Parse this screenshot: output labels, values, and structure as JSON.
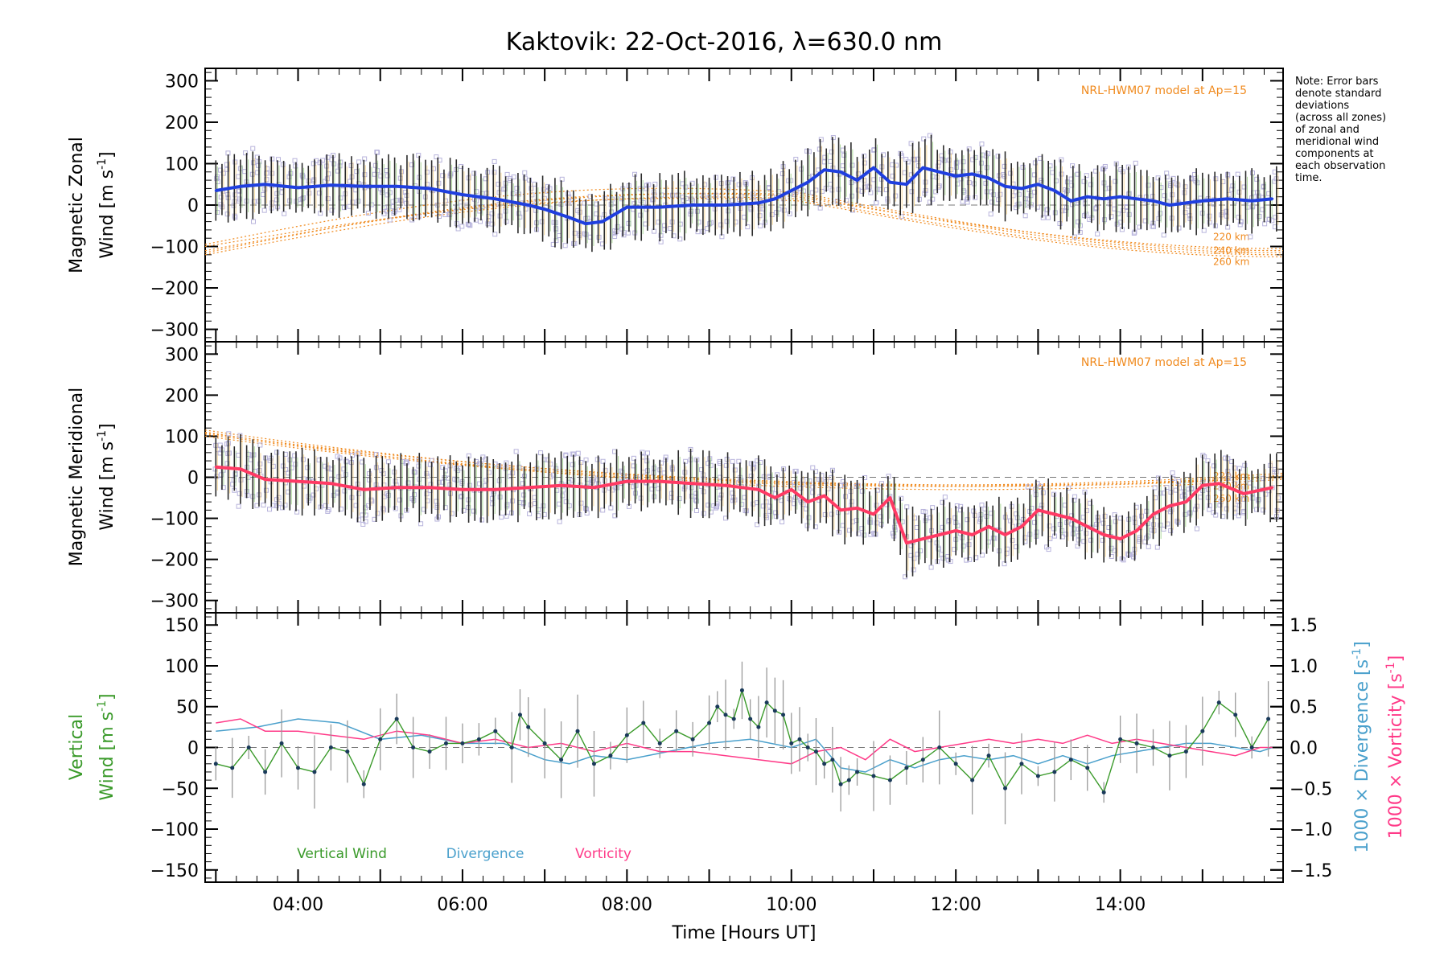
{
  "title": "Kaktovik: 22-Oct-2016, λ=630.0 nm",
  "note": [
    "Note: Error bars",
    "denote standard",
    "deviations",
    "(across all zones)",
    "of zonal and",
    "meridional wind",
    "components at",
    "each observation",
    "time."
  ],
  "colors": {
    "zonal": "#1f3fdf",
    "meridional": "#ff3a64",
    "vertical": "#3a9a2a",
    "divergence": "#4aa0cc",
    "vorticity": "#ff3a88",
    "model": "#f08a1e",
    "errorbar": "#2a2a2a",
    "scatter": "#b8b4dc",
    "axis": "#000000"
  },
  "chart_data": [
    {
      "type": "line",
      "ylabel_line1": "Magnetic Zonal",
      "ylabel_line2": "Wind",
      "ylabel_unit": "[m s",
      "ylabel_unit_sup": "-1",
      "ylabel_unit_end": "]",
      "ylim": [
        -330,
        330
      ],
      "yticks": [
        300,
        200,
        100,
        0,
        -100,
        -200,
        -300
      ],
      "ytick_labels": [
        "300",
        "200",
        "100",
        "0",
        "−100",
        "−200",
        "−300"
      ],
      "model_label": "NRL-HWM07 model at Ap=15",
      "model_alt_labels": [
        "220 km",
        "240 km",
        "260 km"
      ],
      "series": [
        {
          "x": [
            3.0,
            3.3,
            3.6,
            4.0,
            4.4,
            4.8,
            5.2,
            5.6,
            6.0,
            6.4,
            6.8,
            7.0,
            7.3,
            7.5,
            7.7,
            8.0,
            8.4,
            8.8,
            9.2,
            9.6,
            9.8,
            10.0,
            10.2,
            10.4,
            10.6,
            10.8,
            11.0,
            11.2,
            11.4,
            11.6,
            11.8,
            12.0,
            12.2,
            12.4,
            12.6,
            12.8,
            13.0,
            13.2,
            13.4,
            13.6,
            13.8,
            14.0,
            14.2,
            14.4,
            14.6,
            14.8,
            15.0,
            15.3,
            15.6,
            15.85
          ],
          "y": [
            35,
            45,
            50,
            42,
            48,
            45,
            45,
            40,
            25,
            15,
            0,
            -10,
            -30,
            -45,
            -40,
            -5,
            -5,
            0,
            0,
            5,
            15,
            35,
            55,
            85,
            80,
            60,
            90,
            55,
            50,
            90,
            80,
            70,
            75,
            65,
            45,
            40,
            50,
            35,
            10,
            20,
            15,
            20,
            15,
            10,
            0,
            5,
            10,
            15,
            10,
            15
          ]
        }
      ]
    },
    {
      "type": "line",
      "ylabel_line1": "Magnetic Meridional",
      "ylabel_line2": "Wind",
      "ylabel_unit": "[m s",
      "ylabel_unit_sup": "-1",
      "ylabel_unit_end": "]",
      "ylim": [
        -330,
        330
      ],
      "yticks": [
        300,
        200,
        100,
        0,
        -100,
        -200,
        -300
      ],
      "ytick_labels": [
        "300",
        "200",
        "100",
        "0",
        "−100",
        "−200",
        "−300"
      ],
      "model_label": "NRL-HWM07 model at Ap=15",
      "model_alt_labels": [
        "220 km",
        "240 km",
        "260 km"
      ],
      "series": [
        {
          "x": [
            3.0,
            3.3,
            3.6,
            4.0,
            4.4,
            4.8,
            5.2,
            5.6,
            6.0,
            6.4,
            6.8,
            7.2,
            7.6,
            8.0,
            8.4,
            8.8,
            9.2,
            9.6,
            9.8,
            10.0,
            10.2,
            10.4,
            10.6,
            10.8,
            11.0,
            11.2,
            11.4,
            11.6,
            11.8,
            12.0,
            12.2,
            12.4,
            12.6,
            12.8,
            13.0,
            13.2,
            13.4,
            13.6,
            13.8,
            14.0,
            14.2,
            14.4,
            14.6,
            14.8,
            15.0,
            15.2,
            15.5,
            15.85
          ],
          "y": [
            25,
            20,
            -5,
            -10,
            -15,
            -30,
            -25,
            -25,
            -30,
            -30,
            -25,
            -20,
            -25,
            -10,
            -10,
            -15,
            -20,
            -30,
            -50,
            -30,
            -60,
            -45,
            -80,
            -75,
            -90,
            -50,
            -160,
            -150,
            -140,
            -130,
            -140,
            -120,
            -140,
            -120,
            -80,
            -90,
            -100,
            -120,
            -140,
            -150,
            -130,
            -90,
            -70,
            -60,
            -20,
            -15,
            -40,
            -25
          ]
        }
      ]
    },
    {
      "type": "line",
      "ylabel_line1": "Vertical",
      "ylabel_line2": "Wind",
      "ylabel_unit": "[m s",
      "ylabel_unit_sup": "-1",
      "ylabel_unit_end": "]",
      "ylim": [
        -165,
        165
      ],
      "yticks": [
        150,
        100,
        50,
        0,
        -50,
        -100,
        -150
      ],
      "ytick_labels": [
        "150",
        "100",
        "50",
        "0",
        "−50",
        "−100",
        "−150"
      ],
      "y2lim": [
        -1.65,
        1.65
      ],
      "y2ticks": [
        1.5,
        1.0,
        0.5,
        0.0,
        -0.5,
        -1.0,
        -1.5
      ],
      "y2tick_labels": [
        "1.5",
        "1.0",
        "0.5",
        "0.0",
        "−0.5",
        "−1.0",
        "−1.5"
      ],
      "y2label_div": "1000 × Divergence",
      "y2label_vort": "1000 × Vorticity",
      "y2label_unit": "[s",
      "y2label_unit_sup": "-1",
      "y2label_unit_end": "]",
      "legend": [
        "Vertical Wind",
        "Divergence",
        "Vorticity"
      ],
      "series": [
        {
          "name": "Vertical Wind",
          "x": [
            3.0,
            3.2,
            3.4,
            3.6,
            3.8,
            4.0,
            4.2,
            4.4,
            4.6,
            4.8,
            5.0,
            5.2,
            5.4,
            5.6,
            5.8,
            6.0,
            6.2,
            6.4,
            6.6,
            6.7,
            6.8,
            7.0,
            7.2,
            7.4,
            7.6,
            7.8,
            8.0,
            8.2,
            8.4,
            8.6,
            8.8,
            9.0,
            9.1,
            9.2,
            9.3,
            9.4,
            9.5,
            9.6,
            9.7,
            9.8,
            9.9,
            10.0,
            10.1,
            10.2,
            10.3,
            10.4,
            10.5,
            10.6,
            10.7,
            10.8,
            11.0,
            11.2,
            11.4,
            11.6,
            11.8,
            12.0,
            12.2,
            12.4,
            12.6,
            12.8,
            13.0,
            13.2,
            13.4,
            13.6,
            13.8,
            14.0,
            14.2,
            14.4,
            14.6,
            14.8,
            15.0,
            15.2,
            15.4,
            15.6,
            15.8
          ],
          "y": [
            -20,
            -25,
            0,
            -30,
            5,
            -25,
            -30,
            0,
            -5,
            -45,
            10,
            35,
            0,
            -5,
            5,
            5,
            10,
            20,
            0,
            40,
            25,
            5,
            -15,
            20,
            -20,
            -10,
            15,
            30,
            5,
            20,
            10,
            30,
            50,
            40,
            35,
            70,
            35,
            25,
            55,
            45,
            40,
            5,
            10,
            0,
            -5,
            -20,
            -15,
            -45,
            -40,
            -30,
            -35,
            -40,
            -25,
            -15,
            0,
            -20,
            -40,
            -10,
            -50,
            -20,
            -35,
            -30,
            -15,
            -25,
            -55,
            10,
            5,
            0,
            -10,
            -5,
            20,
            55,
            40,
            0,
            35
          ]
        },
        {
          "name": "Divergence",
          "x": [
            3.0,
            3.5,
            4.0,
            4.5,
            5.0,
            5.5,
            6.0,
            6.5,
            7.0,
            7.3,
            7.6,
            8.0,
            8.5,
            9.0,
            9.5,
            10.0,
            10.3,
            10.6,
            10.9,
            11.2,
            11.5,
            11.8,
            12.1,
            12.4,
            12.7,
            13.0,
            13.3,
            13.6,
            13.9,
            14.2,
            14.5,
            14.8,
            15.1,
            15.4,
            15.7,
            15.85
          ],
          "y": [
            0.2,
            0.25,
            0.35,
            0.3,
            0.1,
            0.15,
            0.05,
            0.05,
            -0.15,
            -0.2,
            -0.1,
            -0.15,
            -0.05,
            0.05,
            0.1,
            0.0,
            0.1,
            -0.25,
            -0.3,
            -0.15,
            -0.25,
            -0.15,
            -0.1,
            -0.15,
            -0.1,
            -0.2,
            -0.1,
            -0.2,
            -0.1,
            -0.05,
            0.0,
            0.05,
            0.05,
            0.0,
            -0.05,
            0.0
          ]
        },
        {
          "name": "Vorticity",
          "x": [
            3.0,
            3.3,
            3.6,
            4.0,
            4.4,
            4.8,
            5.2,
            5.6,
            6.0,
            6.4,
            6.8,
            7.2,
            7.6,
            8.0,
            8.4,
            8.8,
            9.2,
            9.6,
            10.0,
            10.3,
            10.6,
            10.9,
            11.2,
            11.5,
            11.8,
            12.1,
            12.4,
            12.7,
            13.0,
            13.3,
            13.6,
            13.9,
            14.2,
            14.5,
            14.8,
            15.1,
            15.4,
            15.7,
            15.85
          ],
          "y": [
            0.3,
            0.35,
            0.2,
            0.2,
            0.15,
            0.1,
            0.2,
            0.15,
            0.05,
            0.1,
            0.0,
            0.05,
            -0.05,
            0.05,
            -0.05,
            -0.05,
            -0.1,
            -0.15,
            -0.2,
            -0.05,
            0.0,
            -0.15,
            0.1,
            -0.05,
            0.0,
            0.05,
            0.1,
            0.05,
            0.1,
            0.05,
            0.15,
            0.05,
            0.1,
            0.05,
            0.0,
            -0.05,
            -0.1,
            0.0,
            0.0
          ]
        }
      ]
    }
  ],
  "x_axis": {
    "label": "Time [Hours UT]",
    "xlim": [
      2.87,
      15.98
    ],
    "ticks": [
      4,
      6,
      8,
      10,
      12,
      14
    ],
    "tick_labels": [
      "04:00",
      "06:00",
      "08:00",
      "10:00",
      "12:00",
      "14:00"
    ]
  }
}
